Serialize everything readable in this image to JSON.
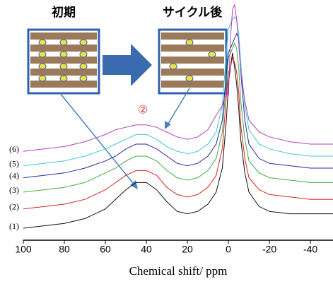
{
  "chart_data": {
    "type": "line",
    "x_label": "Chemical shift/ ppm",
    "annotations": [
      "初期",
      "サイクル後",
      "②"
    ],
    "x": [
      100,
      90,
      80,
      70,
      60,
      55,
      50,
      45,
      40,
      35,
      30,
      25,
      20,
      15,
      10,
      6,
      3,
      1,
      0,
      -1,
      -2,
      -3,
      -4,
      -5,
      -6,
      -8,
      -10,
      -15,
      -20,
      -30,
      -40,
      -51
    ],
    "xlim": [
      100,
      -51
    ],
    "xticks": [
      100,
      80,
      60,
      40,
      20,
      0,
      -20,
      -40
    ],
    "ylim": [
      0,
      100
    ],
    "series": [
      {
        "name": "(1)",
        "color": "#111111",
        "values": [
          5,
          6,
          7,
          9,
          13,
          17,
          21,
          24,
          24,
          21,
          16,
          12,
          11,
          12,
          15,
          20,
          30,
          50,
          65,
          72,
          78,
          72,
          65,
          55,
          42,
          28,
          20,
          14,
          12,
          11,
          11,
          11
        ]
      },
      {
        "name": "(2)",
        "color": "#e02020",
        "values": [
          13,
          14,
          15,
          17,
          21,
          24,
          27,
          29,
          29,
          27,
          22,
          19,
          18,
          19,
          22,
          27,
          38,
          60,
          70,
          72,
          76,
          74,
          70,
          62,
          48,
          34,
          26,
          21,
          19,
          18,
          17,
          17
        ]
      },
      {
        "name": "(3)",
        "color": "#3cb043",
        "values": [
          20,
          21,
          22,
          24,
          28,
          30,
          33,
          35,
          35,
          33,
          29,
          26,
          25,
          26,
          29,
          34,
          45,
          66,
          76,
          78,
          80,
          82,
          80,
          72,
          58,
          42,
          33,
          28,
          26,
          25,
          24,
          24
        ]
      },
      {
        "name": "(4)",
        "color": "#2a2aa0",
        "values": [
          26,
          27,
          28,
          30,
          33,
          35,
          38,
          40,
          40,
          38,
          35,
          32,
          31,
          32,
          35,
          40,
          50,
          70,
          78,
          80,
          82,
          84,
          86,
          84,
          70,
          50,
          40,
          34,
          32,
          31,
          30,
          30
        ]
      },
      {
        "name": "(5)",
        "color": "#40c8d0",
        "values": [
          31,
          32,
          33,
          35,
          38,
          40,
          42,
          44,
          44,
          42,
          39,
          37,
          36,
          37,
          40,
          45,
          56,
          78,
          88,
          90,
          92,
          93,
          92,
          86,
          74,
          56,
          46,
          40,
          38,
          36,
          35,
          35
        ]
      },
      {
        "name": "(6)",
        "color": "#b040c0",
        "values": [
          37,
          38,
          39,
          41,
          44,
          46,
          47,
          48,
          48,
          47,
          45,
          43,
          42,
          43,
          46,
          52,
          56,
          62,
          60,
          84,
          96,
          98,
          92,
          82,
          70,
          58,
          50,
          45,
          43,
          41,
          40,
          40
        ]
      }
    ]
  }
}
